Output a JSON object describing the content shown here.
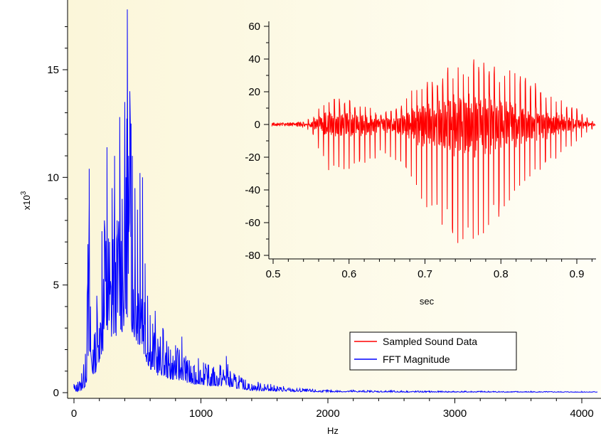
{
  "chart_data": [
    {
      "type": "line",
      "name": "main",
      "xlabel": "Hz",
      "ylabel": "x10",
      "ylabel_exponent": "3",
      "xlim": [
        -25,
        4120
      ],
      "ylim": [
        -0.2,
        17.8
      ],
      "x_ticks": [
        0,
        1000,
        2000,
        3000,
        4000
      ],
      "x_tick_labels": [
        "0",
        "1000",
        "2000",
        "3000",
        "4000"
      ],
      "y_ticks": [
        0,
        5,
        10,
        15
      ],
      "y_tick_labels": [
        "0",
        "5",
        "10",
        "15"
      ],
      "grid": false,
      "background": "#fdfbe4",
      "series": [
        {
          "name": "FFT Magnitude",
          "color": "#0000ff",
          "envelope": {
            "x": [
              0,
              30,
              60,
              90,
              110,
              120,
              130,
              150,
              180,
              200,
              220,
              240,
              260,
              280,
              300,
              320,
              340,
              360,
              380,
              400,
              410,
              420,
              430,
              440,
              450,
              460,
              480,
              500,
              520,
              540,
              560,
              580,
              600,
              620,
              640,
              660,
              680,
              700,
              730,
              760,
              800,
              830,
              850,
              880,
              910,
              940,
              980,
              1020,
              1060,
              1100,
              1150,
              1200,
              1230,
              1260,
              1300,
              1350,
              1400,
              1450,
              1500,
              1550,
              1600,
              1650,
              1700,
              1800,
              1900,
              2000,
              2200,
              2500,
              2800,
              3200,
              3600,
              4000,
              4120
            ],
            "peak": [
              0.4,
              0.5,
              0.9,
              1.8,
              6.9,
              10.4,
              4.0,
              2.0,
              4.5,
              3.0,
              7.5,
              8.0,
              11.4,
              7.0,
              9.5,
              11.0,
              8.0,
              12.8,
              9.0,
              13.5,
              10.0,
              17.8,
              11.0,
              14.0,
              12.5,
              11.0,
              9.5,
              8.5,
              10.2,
              10.0,
              6.0,
              4.5,
              3.6,
              3.2,
              3.8,
              2.5,
              2.6,
              3.0,
              2.4,
              2.0,
              2.2,
              2.0,
              2.6,
              1.7,
              1.5,
              1.2,
              1.6,
              1.4,
              1.3,
              1.2,
              1.3,
              1.7,
              1.0,
              0.9,
              0.8,
              0.6,
              0.4,
              0.5,
              0.4,
              0.4,
              0.3,
              0.3,
              0.2,
              0.2,
              0.15,
              0.12,
              0.12,
              0.1,
              0.08,
              0.08,
              0.06,
              0.05,
              0.05
            ],
            "base": [
              0.05,
              0.05,
              0.1,
              0.3,
              0.8,
              1.0,
              0.9,
              0.8,
              1.0,
              1.5,
              1.8,
              2.0,
              2.3,
              2.2,
              2.5,
              2.7,
              2.6,
              3.0,
              2.8,
              3.2,
              3.0,
              3.5,
              3.2,
              3.4,
              3.0,
              2.8,
              2.5,
              2.2,
              2.2,
              2.0,
              1.6,
              1.3,
              1.1,
              1.0,
              1.0,
              0.8,
              0.8,
              0.8,
              0.7,
              0.6,
              0.6,
              0.55,
              0.6,
              0.5,
              0.4,
              0.35,
              0.4,
              0.35,
              0.3,
              0.3,
              0.3,
              0.3,
              0.25,
              0.2,
              0.18,
              0.14,
              0.1,
              0.1,
              0.08,
              0.08,
              0.06,
              0.06,
              0.05,
              0.04,
              0.03,
              0.03,
              0.03,
              0.02,
              0.02,
              0.02,
              0.02,
              0.02,
              0.02
            ]
          }
        }
      ],
      "legend": {
        "placement": "lower-right",
        "entries": [
          {
            "label": "Sampled Sound Data",
            "color": "#ff0000"
          },
          {
            "label": "FFT Magnitude",
            "color": "#0000ff"
          }
        ]
      }
    },
    {
      "type": "line",
      "name": "inset",
      "xlabel": "sec",
      "ylabel": "",
      "xlim": [
        0.498,
        0.925
      ],
      "ylim": [
        -81,
        65
      ],
      "x_ticks": [
        0.5,
        0.6,
        0.7,
        0.8,
        0.9
      ],
      "x_tick_labels": [
        "0.5",
        "0.6",
        "0.7",
        "0.8",
        "0.9"
      ],
      "y_ticks": [
        -80,
        -60,
        -40,
        -20,
        0,
        20,
        40,
        60
      ],
      "y_tick_labels": [
        "-80",
        "-60",
        "-40",
        "-20",
        "0",
        "20",
        "40",
        "60"
      ],
      "grid": false,
      "series": [
        {
          "name": "Sampled Sound Data",
          "color": "#ff0000",
          "envelope": {
            "x": [
              0.5,
              0.52,
              0.54,
              0.55,
              0.555,
              0.56,
              0.57,
              0.58,
              0.59,
              0.6,
              0.61,
              0.62,
              0.63,
              0.64,
              0.65,
              0.66,
              0.67,
              0.68,
              0.69,
              0.7,
              0.71,
              0.72,
              0.73,
              0.74,
              0.75,
              0.76,
              0.77,
              0.78,
              0.79,
              0.8,
              0.81,
              0.82,
              0.83,
              0.84,
              0.85,
              0.86,
              0.87,
              0.88,
              0.89,
              0.9,
              0.91,
              0.92,
              0.925
            ],
            "upper": [
              1,
              1,
              2,
              4,
              8,
              10,
              16,
              18,
              17,
              16,
              13,
              12,
              10,
              6,
              8,
              10,
              12,
              20,
              24,
              28,
              30,
              31,
              35,
              38,
              39,
              42,
              40,
              38,
              36,
              35,
              34,
              32,
              30,
              28,
              25,
              22,
              18,
              15,
              12,
              10,
              5,
              3,
              2
            ],
            "lower": [
              -1,
              -1,
              -2,
              -5,
              -10,
              -15,
              -30,
              -31,
              -30,
              -29,
              -28,
              -27,
              -25,
              -18,
              -20,
              -22,
              -28,
              -36,
              -44,
              -52,
              -56,
              -60,
              -66,
              -72,
              -74,
              -76,
              -72,
              -68,
              -62,
              -55,
              -48,
              -44,
              -40,
              -35,
              -30,
              -26,
              -22,
              -20,
              -15,
              -12,
              -6,
              -3,
              -2
            ]
          }
        }
      ]
    }
  ]
}
